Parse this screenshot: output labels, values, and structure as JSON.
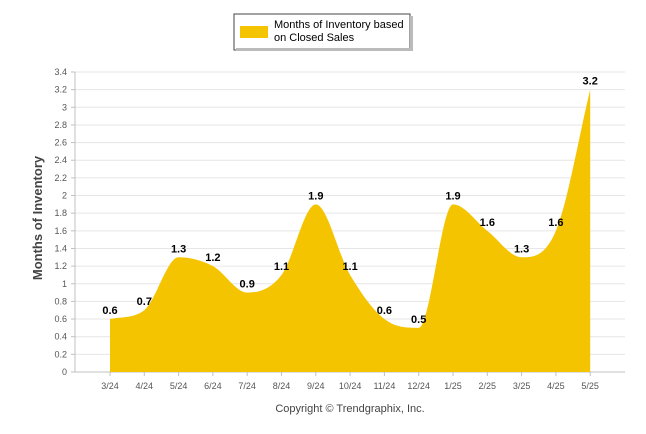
{
  "chart_data": {
    "type": "area",
    "categories": [
      "3/24",
      "4/24",
      "5/24",
      "6/24",
      "7/24",
      "8/24",
      "9/24",
      "10/24",
      "11/24",
      "12/24",
      "1/25",
      "2/25",
      "3/25",
      "4/25",
      "5/25"
    ],
    "series": [
      {
        "name": "Months of Inventory based on Closed Sales",
        "values": [
          0.6,
          0.7,
          1.3,
          1.2,
          0.9,
          1.1,
          1.9,
          1.1,
          0.6,
          0.5,
          1.9,
          1.6,
          1.3,
          1.6,
          3.2
        ]
      }
    ],
    "data_labels": [
      "0.6",
      "0.7",
      "1.3",
      "1.2",
      "0.9",
      "1.1",
      "1.9",
      "1.1",
      "0.6",
      "0.5",
      "1.9",
      "1.6",
      "1.3",
      "1.6",
      "3.2"
    ],
    "ylabel": "Months of Inventory",
    "xlabel": "",
    "ylim": [
      0,
      3.4
    ],
    "yticks": [
      "0",
      "0.2",
      "0.4",
      "0.6",
      "0.8",
      "1",
      "1.2",
      "1.4",
      "1.6",
      "1.8",
      "2",
      "2.2",
      "2.4",
      "2.6",
      "2.8",
      "3",
      "3.2",
      "3.4"
    ],
    "legend": {
      "label_lines": [
        "Months of Inventory based",
        "on Closed Sales"
      ],
      "placement": "top-center"
    },
    "grid": true,
    "colors": {
      "fill": "#f5c400",
      "grid": "#e6e6e6",
      "axis": "#c0c0c0"
    }
  },
  "footer": {
    "copyright": "Copyright © Trendgraphix, Inc."
  }
}
